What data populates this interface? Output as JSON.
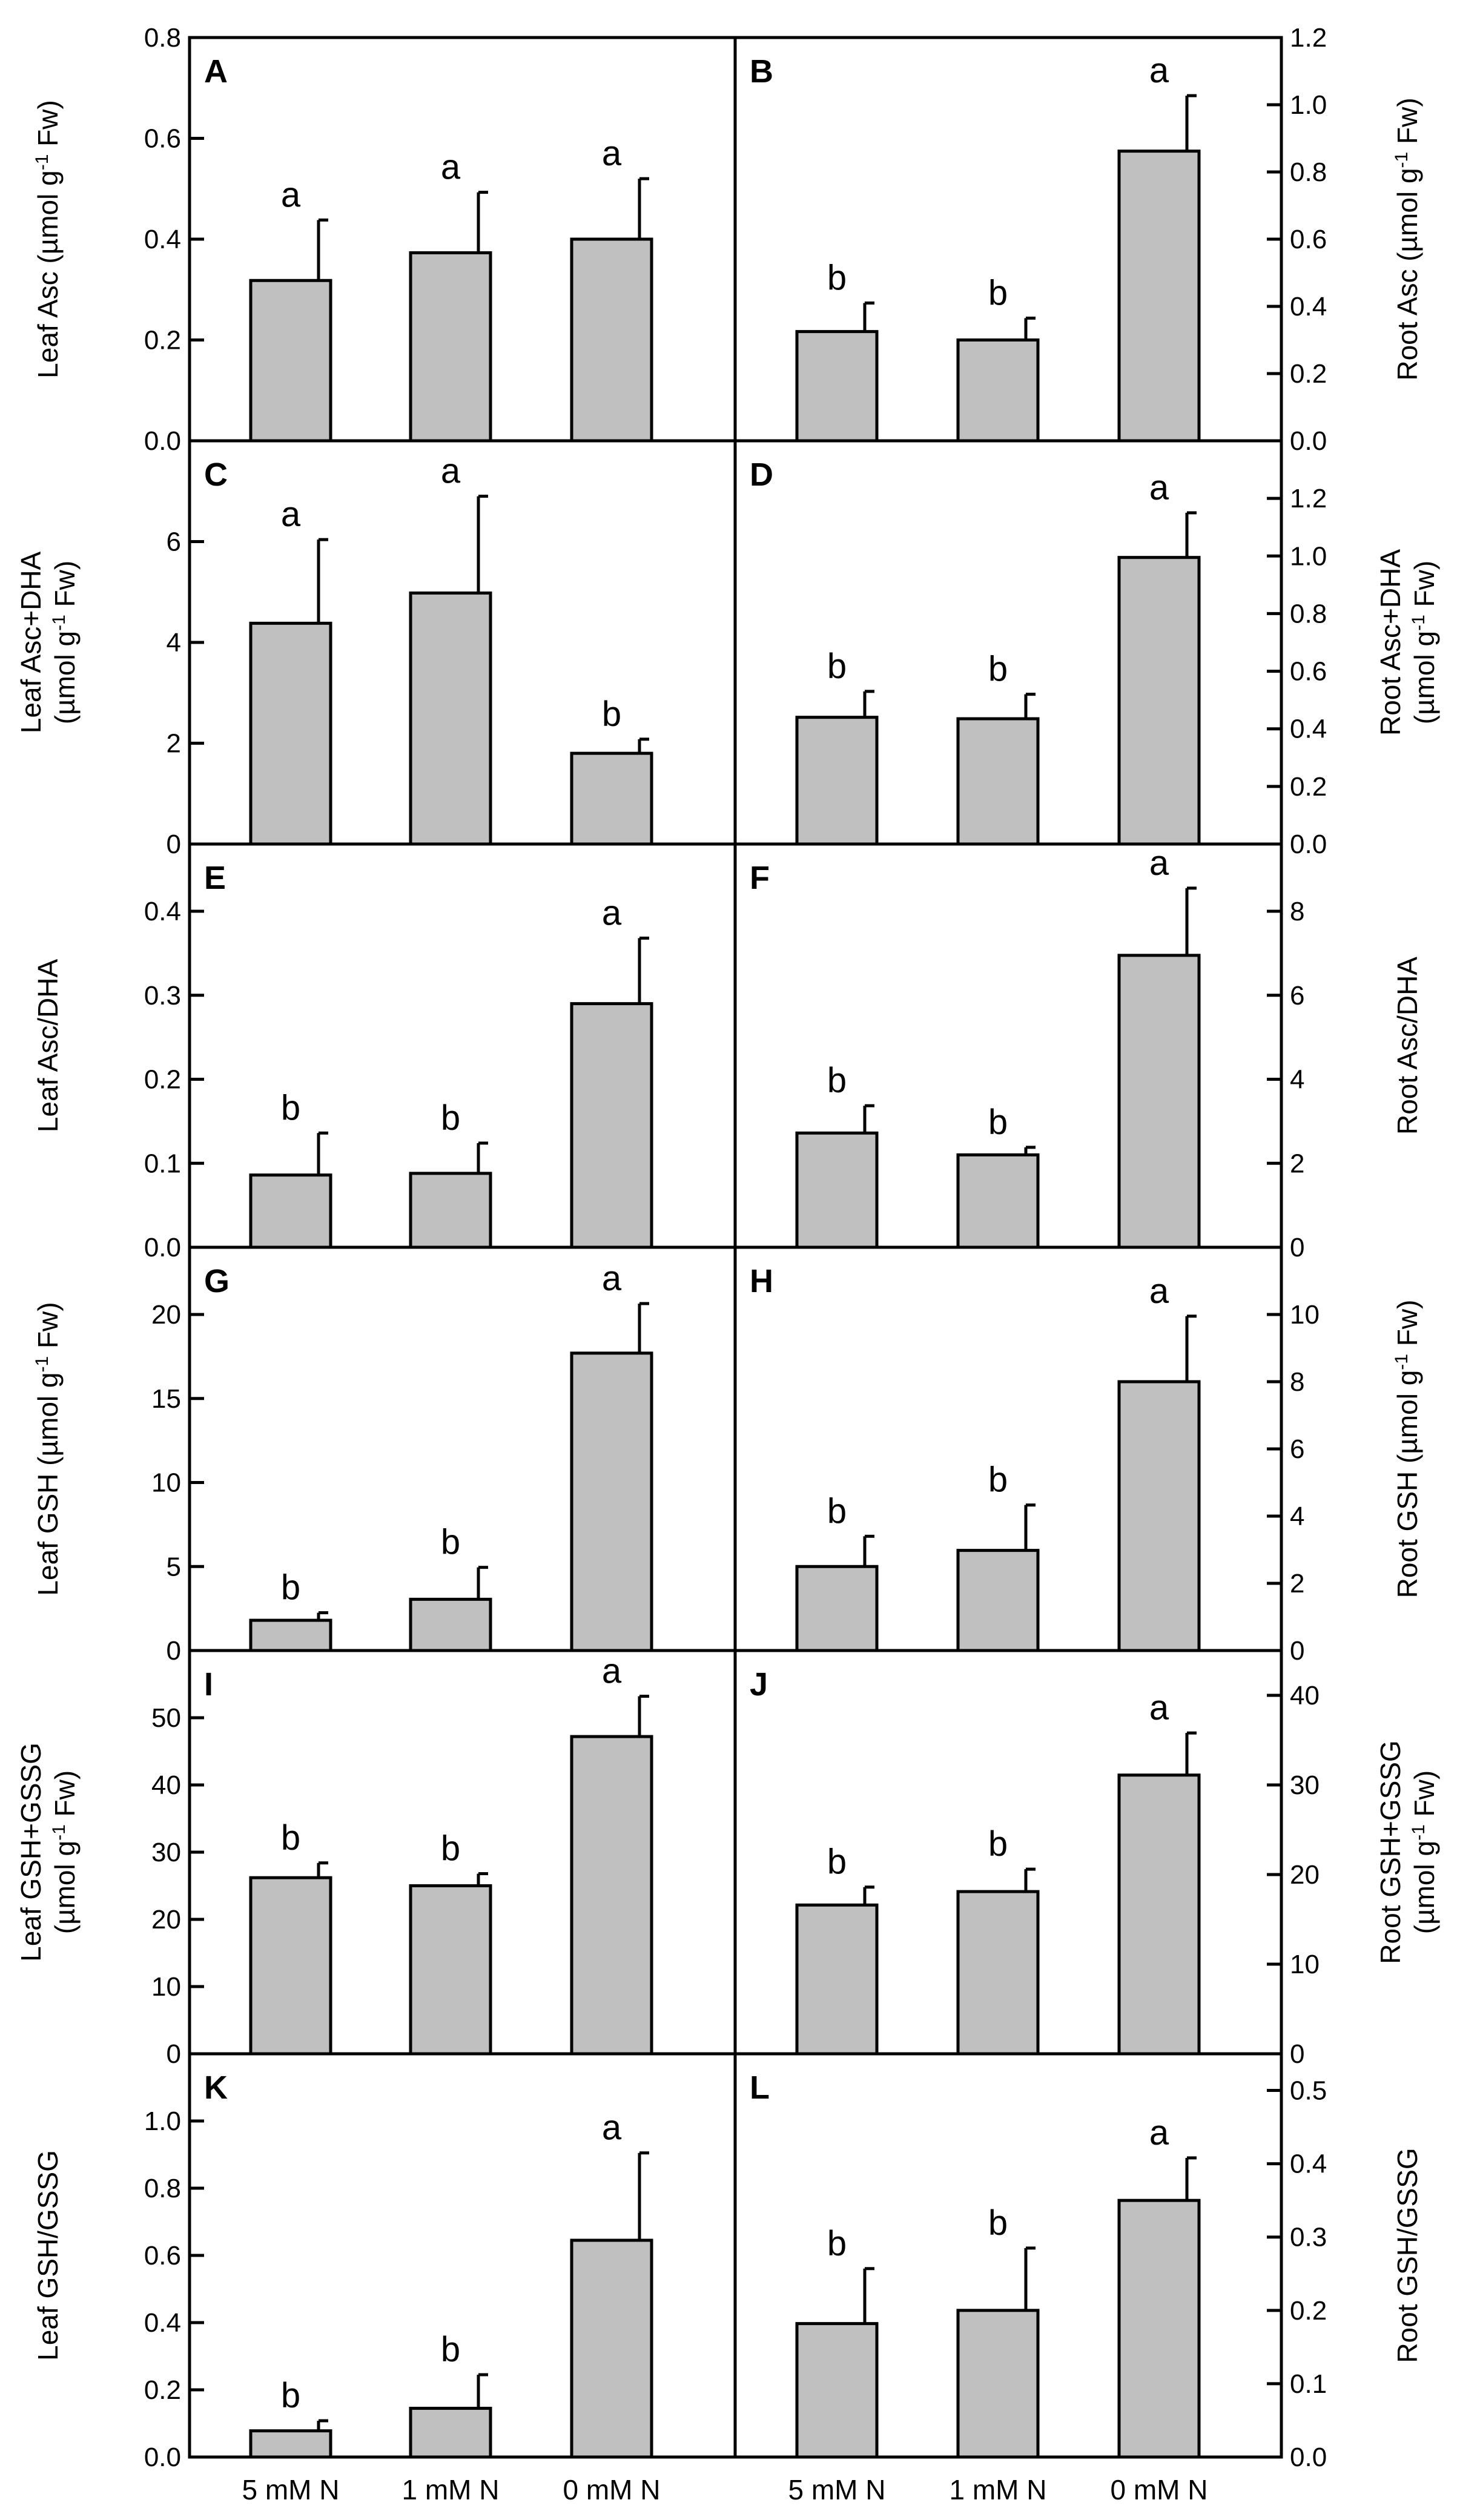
{
  "categories": [
    "5 mM N",
    "1 mM N",
    "0 mM N"
  ],
  "colors": {
    "bar_fill": "#c0c0c0",
    "stroke": "#000000"
  },
  "chart_data": [
    {
      "type": "bar",
      "panel": "A",
      "column": "left",
      "row": 0,
      "ylabel_lines": [
        [
          "Leaf Asc (µmol g",
          "-1",
          " Fw)"
        ]
      ],
      "ylim": [
        0,
        0.8
      ],
      "yticks": [
        0,
        0.2,
        0.4,
        0.6,
        0.8
      ],
      "ytick_labels": [
        "0.0",
        "0.2",
        "0.4",
        "0.6",
        "0.8"
      ],
      "values": [
        0.318,
        0.373,
        0.4
      ],
      "errors": [
        0.12,
        0.12,
        0.12
      ],
      "significance": [
        "a",
        "a",
        "a"
      ]
    },
    {
      "type": "bar",
      "panel": "B",
      "column": "right",
      "row": 0,
      "ylabel_lines": [
        [
          "Root  Asc (µmol g",
          "-1",
          " Fw)"
        ]
      ],
      "ylim": [
        0,
        1.2
      ],
      "yticks": [
        0,
        0.2,
        0.4,
        0.6,
        0.8,
        1.0,
        1.2
      ],
      "ytick_labels": [
        "0.0",
        "0.2",
        "0.4",
        "0.6",
        "0.8",
        "1.0",
        "1.2"
      ],
      "values": [
        0.325,
        0.3,
        0.862
      ],
      "errors": [
        0.085,
        0.065,
        0.165
      ],
      "significance": [
        "b",
        "b",
        "a"
      ]
    },
    {
      "type": "bar",
      "panel": "C",
      "column": "left",
      "row": 1,
      "ylabel_lines": [
        [
          "Leaf Asc+DHA"
        ],
        [
          "(µmol g",
          "-1",
          " Fw)"
        ]
      ],
      "ylim": [
        0,
        8
      ],
      "yticks": [
        0,
        2,
        4,
        6
      ],
      "ytick_labels": [
        "0",
        "2",
        "4",
        "6"
      ],
      "values": [
        4.38,
        4.98,
        1.8
      ],
      "errors": [
        1.66,
        1.92,
        0.28
      ],
      "significance": [
        "a",
        "a",
        "b"
      ]
    },
    {
      "type": "bar",
      "panel": "D",
      "column": "right",
      "row": 1,
      "ylabel_lines": [
        [
          "Root Asc+DHA"
        ],
        [
          "(µmol g",
          "-1",
          " Fw)"
        ]
      ],
      "ylim": [
        0,
        1.4
      ],
      "yticks": [
        0,
        0.2,
        0.4,
        0.6,
        0.8,
        1.0,
        1.2
      ],
      "ytick_labels": [
        "0.0",
        "0.2",
        "0.4",
        "0.6",
        "0.8",
        "1.0",
        "1.2"
      ],
      "values": [
        0.44,
        0.435,
        0.995
      ],
      "errors": [
        0.09,
        0.085,
        0.155
      ],
      "significance": [
        "b",
        "b",
        "a"
      ]
    },
    {
      "type": "bar",
      "panel": "E",
      "column": "left",
      "row": 2,
      "ylabel_lines": [
        [
          "Leaf Asc/DHA"
        ]
      ],
      "ylim": [
        0,
        0.48
      ],
      "yticks": [
        0,
        0.1,
        0.2,
        0.3,
        0.4
      ],
      "ytick_labels": [
        "0.0",
        "0.1",
        "0.2",
        "0.3",
        "0.4"
      ],
      "values": [
        0.086,
        0.088,
        0.29
      ],
      "errors": [
        0.05,
        0.036,
        0.078
      ],
      "significance": [
        "b",
        "b",
        "a"
      ]
    },
    {
      "type": "bar",
      "panel": "F",
      "column": "right",
      "row": 2,
      "ylabel_lines": [
        [
          "Root Asc/DHA"
        ]
      ],
      "ylim": [
        0,
        9.6
      ],
      "yticks": [
        0,
        2,
        4,
        6,
        8
      ],
      "ytick_labels": [
        "0",
        "2",
        "4",
        "6",
        "8"
      ],
      "values": [
        2.72,
        2.2,
        6.95
      ],
      "errors": [
        0.65,
        0.18,
        1.6
      ],
      "significance": [
        "b",
        "b",
        "a"
      ]
    },
    {
      "type": "bar",
      "panel": "G",
      "column": "left",
      "row": 3,
      "ylabel_lines": [
        [
          "Leaf GSH (µmol g",
          "-1",
          "  Fw)"
        ]
      ],
      "ylim": [
        0,
        24
      ],
      "yticks": [
        0,
        5,
        10,
        15,
        20
      ],
      "ytick_labels": [
        "0",
        "5",
        "10",
        "15",
        "20"
      ],
      "values": [
        1.8,
        3.05,
        17.7
      ],
      "errors": [
        0.45,
        1.9,
        2.95
      ],
      "significance": [
        "b",
        "b",
        "a"
      ]
    },
    {
      "type": "bar",
      "panel": "H",
      "column": "right",
      "row": 3,
      "ylabel_lines": [
        [
          "Root GSH (µmol g",
          "-1",
          " Fw)"
        ]
      ],
      "ylim": [
        0,
        12
      ],
      "yticks": [
        0,
        2,
        4,
        6,
        8,
        10
      ],
      "ytick_labels": [
        "0",
        "2",
        "4",
        "6",
        "8",
        "10"
      ],
      "values": [
        2.5,
        2.98,
        8.0
      ],
      "errors": [
        0.9,
        1.35,
        1.95
      ],
      "significance": [
        "b",
        "b",
        "a"
      ]
    },
    {
      "type": "bar",
      "panel": "I",
      "column": "left",
      "row": 4,
      "ylabel_lines": [
        [
          "Leaf GSH+GSSG"
        ],
        [
          "(µmol g",
          "-1",
          " Fw)"
        ]
      ],
      "ylim": [
        0,
        60
      ],
      "yticks": [
        0,
        10,
        20,
        30,
        40,
        50
      ],
      "ytick_labels": [
        "0",
        "10",
        "20",
        "30",
        "40",
        "50"
      ],
      "values": [
        26.2,
        25.0,
        47.2
      ],
      "errors": [
        2.2,
        1.8,
        6.0
      ],
      "significance": [
        "b",
        "b",
        "a"
      ]
    },
    {
      "type": "bar",
      "panel": "J",
      "column": "right",
      "row": 4,
      "ylabel_lines": [
        [
          "Root  GSH+GSSG"
        ],
        [
          "(µmol g",
          "-1",
          " Fw)"
        ]
      ],
      "ylim": [
        0,
        45
      ],
      "yticks": [
        0,
        10,
        20,
        30,
        40
      ],
      "ytick_labels": [
        "0",
        "10",
        "20",
        "30",
        "40"
      ],
      "values": [
        16.6,
        18.1,
        31.1
      ],
      "errors": [
        2.0,
        2.5,
        4.7
      ],
      "significance": [
        "b",
        "b",
        "a"
      ]
    },
    {
      "type": "bar",
      "panel": "K",
      "column": "left",
      "row": 5,
      "ylabel_lines": [
        [
          "Leaf GSH/GSSG"
        ]
      ],
      "ylim": [
        0,
        1.2
      ],
      "yticks": [
        0,
        0.2,
        0.4,
        0.6,
        0.8,
        1.0
      ],
      "ytick_labels": [
        "0.0",
        "0.2",
        "0.4",
        "0.6",
        "0.8",
        "1.0"
      ],
      "values": [
        0.078,
        0.145,
        0.645
      ],
      "errors": [
        0.03,
        0.1,
        0.26
      ],
      "significance": [
        "b",
        "b",
        "a"
      ]
    },
    {
      "type": "bar",
      "panel": "L",
      "column": "right",
      "row": 5,
      "ylabel_lines": [
        [
          "Root GSH/GSSG"
        ]
      ],
      "ylim": [
        0,
        0.55
      ],
      "yticks": [
        0,
        0.1,
        0.2,
        0.3,
        0.4,
        0.5
      ],
      "ytick_labels": [
        "0.0",
        "0.1",
        "0.2",
        "0.3",
        "0.4",
        "0.5"
      ],
      "values": [
        0.182,
        0.2,
        0.35
      ],
      "errors": [
        0.075,
        0.085,
        0.058
      ],
      "significance": [
        "b",
        "b",
        "a"
      ]
    }
  ]
}
